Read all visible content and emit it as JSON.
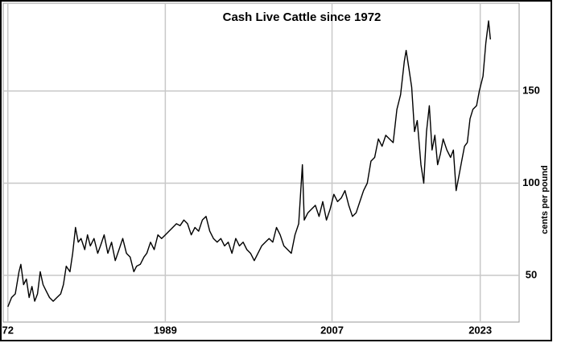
{
  "chart_data": {
    "type": "line",
    "title": "Cash Live Cattle since 1972",
    "y_label": "cents per pound",
    "xlim": [
      1971.5,
      2027.2
    ],
    "ylim": [
      24.7,
      197.6
    ],
    "xticks": [
      {
        "value": 1972,
        "label": "72"
      },
      1989,
      2007,
      2023
    ],
    "yticks": [
      50,
      100,
      150
    ],
    "grid": true,
    "x": [
      1972.0,
      1972.4,
      1972.8,
      1973.2,
      1973.4,
      1973.7,
      1974.0,
      1974.3,
      1974.6,
      1974.9,
      1975.2,
      1975.5,
      1975.8,
      1976.1,
      1976.5,
      1976.9,
      1977.3,
      1977.7,
      1978.0,
      1978.3,
      1978.7,
      1979.0,
      1979.3,
      1979.6,
      1979.9,
      1980.3,
      1980.6,
      1980.9,
      1981.3,
      1981.7,
      1982.0,
      1982.4,
      1982.8,
      1983.2,
      1983.6,
      1984.0,
      1984.4,
      1984.8,
      1985.2,
      1985.6,
      1985.9,
      1986.3,
      1986.7,
      1987.0,
      1987.4,
      1987.8,
      1988.2,
      1988.6,
      1989.0,
      1989.4,
      1989.8,
      1990.2,
      1990.6,
      1991.0,
      1991.4,
      1991.8,
      1992.2,
      1992.6,
      1993.0,
      1993.4,
      1993.8,
      1994.2,
      1994.6,
      1995.0,
      1995.4,
      1995.8,
      1996.2,
      1996.6,
      1997.0,
      1997.4,
      1997.8,
      1998.2,
      1998.6,
      1999.0,
      1999.4,
      1999.8,
      2000.2,
      2000.6,
      2001.0,
      2001.4,
      2001.8,
      2002.2,
      2002.6,
      2003.0,
      2003.4,
      2003.8,
      2004.0,
      2004.4,
      2004.8,
      2005.2,
      2005.6,
      2006.0,
      2006.4,
      2006.8,
      2007.2,
      2007.6,
      2008.0,
      2008.4,
      2008.8,
      2009.2,
      2009.6,
      2010.0,
      2010.4,
      2010.8,
      2011.2,
      2011.6,
      2012.0,
      2012.4,
      2012.8,
      2013.2,
      2013.6,
      2014.0,
      2014.4,
      2014.8,
      2015.0,
      2015.3,
      2015.6,
      2015.9,
      2016.2,
      2016.6,
      2016.9,
      2017.2,
      2017.5,
      2017.8,
      2018.1,
      2018.4,
      2018.7,
      2019.0,
      2019.4,
      2019.8,
      2020.1,
      2020.4,
      2020.7,
      2021.0,
      2021.3,
      2021.6,
      2021.9,
      2022.2,
      2022.6,
      2022.9,
      2023.3,
      2023.6,
      2023.9,
      2024.1
    ],
    "series": [
      {
        "color": "#000000",
        "values": [
          33,
          38,
          40,
          52,
          56,
          45,
          48,
          38,
          44,
          36,
          40,
          52,
          45,
          42,
          38,
          36,
          38,
          40,
          45,
          55,
          52,
          62,
          76,
          68,
          70,
          64,
          72,
          66,
          70,
          62,
          66,
          72,
          62,
          68,
          58,
          64,
          70,
          62,
          60,
          52,
          55,
          56,
          60,
          62,
          68,
          64,
          72,
          70,
          72,
          74,
          76,
          78,
          77,
          80,
          78,
          72,
          76,
          74,
          80,
          82,
          74,
          70,
          68,
          70,
          66,
          68,
          62,
          70,
          66,
          68,
          64,
          62,
          58,
          62,
          66,
          68,
          70,
          68,
          76,
          72,
          66,
          64,
          62,
          72,
          78,
          110,
          80,
          84,
          86,
          88,
          82,
          90,
          80,
          86,
          94,
          90,
          92,
          96,
          88,
          82,
          84,
          90,
          96,
          100,
          112,
          114,
          124,
          120,
          126,
          124,
          122,
          140,
          148,
          166,
          172,
          162,
          152,
          128,
          134,
          110,
          100,
          128,
          142,
          118,
          126,
          110,
          116,
          124,
          118,
          114,
          118,
          96,
          104,
          112,
          120,
          122,
          135,
          140,
          142,
          150,
          158,
          176,
          188,
          178
        ]
      }
    ]
  }
}
